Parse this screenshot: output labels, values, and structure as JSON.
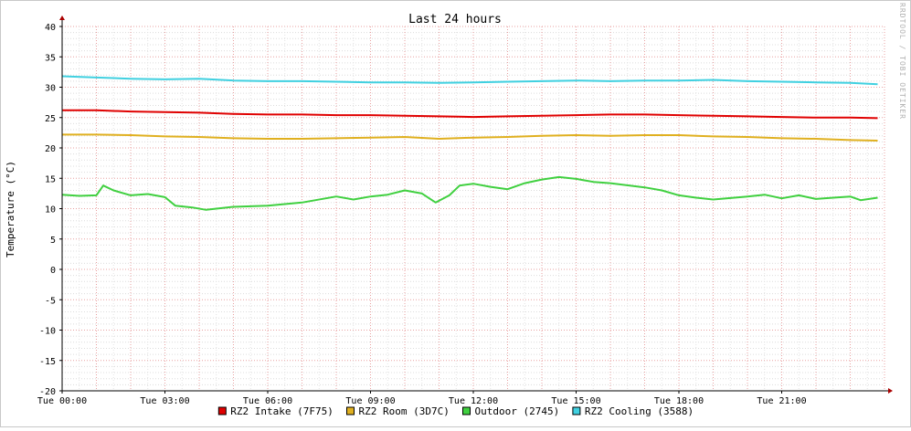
{
  "chart_data": {
    "type": "line",
    "title": "Last 24 hours",
    "ylabel": "Temperature (°C)",
    "xlabel": "",
    "watermark": "RRDTOOL / TOBI OETIKER",
    "ylim": [
      -20,
      40
    ],
    "yticks": [
      40,
      35,
      30,
      25,
      20,
      15,
      10,
      5,
      0,
      -5,
      -10,
      -15,
      -20
    ],
    "xlim": [
      0,
      24
    ],
    "xticks": [
      {
        "hour": 0,
        "label": "Tue 00:00"
      },
      {
        "hour": 3,
        "label": "Tue 03:00"
      },
      {
        "hour": 6,
        "label": "Tue 06:00"
      },
      {
        "hour": 9,
        "label": "Tue 09:00"
      },
      {
        "hour": 12,
        "label": "Tue 12:00"
      },
      {
        "hour": 15,
        "label": "Tue 15:00"
      },
      {
        "hour": 18,
        "label": "Tue 18:00"
      },
      {
        "hour": 21,
        "label": "Tue 21:00"
      }
    ],
    "grid": true,
    "legend_position": "bottom",
    "x_unit": "hours since Tue 00:00",
    "series": [
      {
        "name": "RZ2 Intake (7F75)",
        "color": "#e00000",
        "x": [
          0,
          1,
          2,
          3,
          4,
          5,
          6,
          7,
          8,
          9,
          10,
          11,
          12,
          13,
          14,
          15,
          16,
          17,
          18,
          19,
          20,
          21,
          22,
          23,
          23.8
        ],
        "y": [
          26.2,
          26.2,
          26.0,
          25.9,
          25.8,
          25.6,
          25.5,
          25.5,
          25.4,
          25.4,
          25.3,
          25.2,
          25.1,
          25.2,
          25.3,
          25.4,
          25.5,
          25.5,
          25.4,
          25.3,
          25.2,
          25.1,
          25.0,
          25.0,
          24.9
        ]
      },
      {
        "name": "RZ2 Room (3D7C)",
        "color": "#e0b020",
        "x": [
          0,
          1,
          2,
          3,
          4,
          5,
          6,
          7,
          8,
          9,
          10,
          11,
          12,
          13,
          14,
          15,
          16,
          17,
          18,
          19,
          20,
          21,
          22,
          23,
          23.8
        ],
        "y": [
          22.2,
          22.2,
          22.1,
          21.9,
          21.8,
          21.6,
          21.5,
          21.5,
          21.6,
          21.7,
          21.8,
          21.5,
          21.7,
          21.8,
          22.0,
          22.1,
          22.0,
          22.1,
          22.1,
          21.9,
          21.8,
          21.6,
          21.5,
          21.3,
          21.2
        ]
      },
      {
        "name": "Outdoor (2745)",
        "color": "#40d040",
        "x": [
          0,
          0.5,
          1,
          1.2,
          1.5,
          2,
          2.5,
          3,
          3.3,
          3.8,
          4.2,
          5,
          6,
          7,
          8,
          8.5,
          9,
          9.5,
          10,
          10.5,
          10.9,
          11.3,
          11.6,
          12,
          12.5,
          13,
          13.5,
          14,
          14.5,
          15,
          15.5,
          16,
          17,
          17.5,
          18,
          18.5,
          19,
          20,
          20.5,
          21,
          21.5,
          22,
          22.5,
          23,
          23.3,
          23.8
        ],
        "y": [
          12.3,
          12.1,
          12.2,
          13.8,
          13.0,
          12.2,
          12.4,
          11.9,
          10.5,
          10.2,
          9.8,
          10.3,
          10.5,
          11.0,
          12.0,
          11.5,
          12.0,
          12.3,
          13.0,
          12.5,
          11.0,
          12.2,
          13.8,
          14.1,
          13.6,
          13.2,
          14.2,
          14.8,
          15.2,
          14.9,
          14.4,
          14.2,
          13.5,
          13.0,
          12.2,
          11.8,
          11.5,
          12.0,
          12.3,
          11.7,
          12.2,
          11.6,
          11.8,
          12.0,
          11.4,
          11.8
        ]
      },
      {
        "name": "RZ2 Cooling (3588)",
        "color": "#40d0e0",
        "x": [
          0,
          1,
          2,
          3,
          4,
          5,
          6,
          7,
          8,
          9,
          10,
          11,
          12,
          13,
          14,
          15,
          16,
          17,
          18,
          19,
          20,
          21,
          22,
          23,
          23.8
        ],
        "y": [
          31.8,
          31.6,
          31.4,
          31.3,
          31.4,
          31.1,
          31.0,
          31.0,
          30.9,
          30.8,
          30.8,
          30.7,
          30.8,
          30.9,
          31.0,
          31.1,
          31.0,
          31.1,
          31.1,
          31.2,
          31.0,
          30.9,
          30.8,
          30.7,
          30.5
        ]
      }
    ]
  }
}
